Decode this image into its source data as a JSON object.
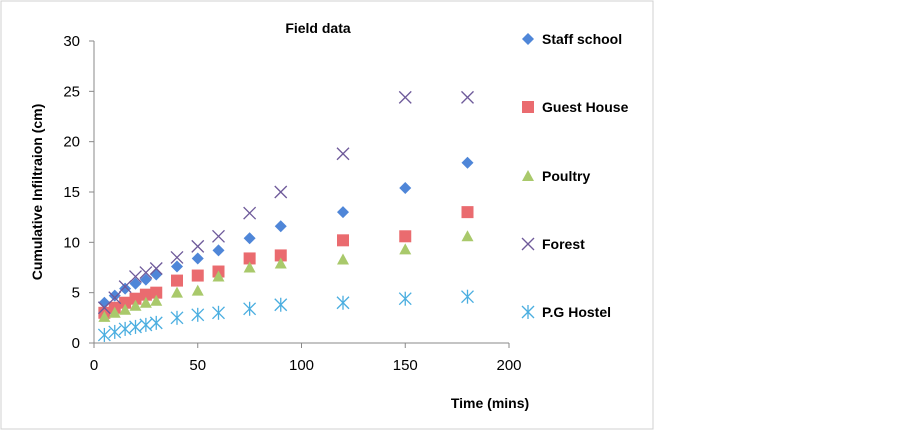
{
  "chart_data": {
    "type": "scatter",
    "title": "Field data",
    "xlabel": "Time (mins)",
    "ylabel": "Cumulative Infiltraion (cm)",
    "xlim": [
      0,
      200
    ],
    "ylim": [
      0,
      30
    ],
    "xticks": [
      0,
      50,
      100,
      150,
      200
    ],
    "yticks": [
      0,
      5,
      10,
      15,
      20,
      25,
      30
    ],
    "grid": false,
    "legend_position": "right",
    "x": [
      5,
      10,
      15,
      20,
      25,
      30,
      40,
      50,
      60,
      75,
      90,
      120,
      150,
      180
    ],
    "series": [
      {
        "name": "Staff school",
        "marker": "diamond",
        "color": "#4f86d8",
        "values": [
          4.0,
          4.7,
          5.4,
          5.9,
          6.3,
          6.8,
          7.6,
          8.4,
          9.2,
          10.4,
          11.6,
          13.0,
          15.4,
          17.9
        ]
      },
      {
        "name": "Guest House",
        "marker": "square",
        "color": "#ea6b6f",
        "values": [
          3.0,
          3.5,
          4.0,
          4.4,
          4.8,
          5.0,
          6.2,
          6.7,
          7.1,
          8.4,
          8.7,
          10.2,
          10.6,
          13.0
        ]
      },
      {
        "name": "Poultry",
        "marker": "triangle",
        "color": "#a9c96b",
        "values": [
          2.6,
          3.0,
          3.3,
          3.7,
          4.0,
          4.2,
          5.0,
          5.2,
          6.6,
          7.5,
          7.9,
          8.3,
          9.3,
          10.6
        ]
      },
      {
        "name": "Forest",
        "marker": "x",
        "color": "#6e5a9a",
        "values": [
          3.5,
          4.5,
          5.6,
          6.6,
          7.0,
          7.4,
          8.5,
          9.6,
          10.6,
          12.9,
          15.0,
          18.8,
          24.4,
          24.4
        ]
      },
      {
        "name": "P.G Hostel",
        "marker": "asterisk",
        "color": "#4aaee0",
        "values": [
          0.8,
          1.1,
          1.4,
          1.6,
          1.8,
          2.0,
          2.5,
          2.8,
          3.0,
          3.4,
          3.8,
          4.0,
          4.4,
          4.6
        ]
      }
    ]
  }
}
